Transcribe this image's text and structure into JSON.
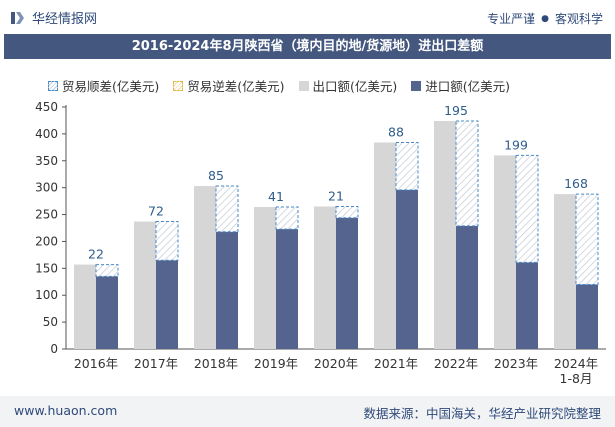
{
  "header": {
    "brand": "华经情报网",
    "slogan_left": "专业严谨",
    "slogan_right": "客观科学"
  },
  "title": "2016-2024年8月陕西省（境内目的地/货源地）进出口差额",
  "legend": {
    "surplus": "贸易顺差(亿美元)",
    "deficit": "贸易逆差(亿美元)",
    "export": "出口额(亿美元)",
    "import": "进口额(亿美元)"
  },
  "colors": {
    "export": "#d6d6d6",
    "import": "#54648f",
    "surplus_border": "#4a8aca",
    "deficit_border": "#e2b84b",
    "title_bg": "#44577f",
    "label": "#2e5d8a"
  },
  "chart_data": {
    "type": "bar",
    "title": "2016-2024年8月陕西省（境内目的地/货源地）进出口差额",
    "categories": [
      "2016年",
      "2017年",
      "2018年",
      "2019年",
      "2020年",
      "2021年",
      "2022年",
      "2023年",
      "2024年\n1-8月"
    ],
    "series": [
      {
        "name": "出口额(亿美元)",
        "values": [
          157,
          237,
          303,
          264,
          265,
          384,
          424,
          360,
          288
        ]
      },
      {
        "name": "进口额(亿美元)",
        "values": [
          135,
          165,
          218,
          223,
          244,
          296,
          229,
          161,
          120
        ]
      },
      {
        "name": "贸易顺差(亿美元)",
        "values": [
          22,
          72,
          85,
          41,
          21,
          88,
          195,
          199,
          168
        ]
      },
      {
        "name": "贸易逆差(亿美元)",
        "values": [
          0,
          0,
          0,
          0,
          0,
          0,
          0,
          0,
          0
        ]
      }
    ],
    "ylim": [
      0,
      450
    ],
    "yticks": [
      0,
      50,
      100,
      150,
      200,
      250,
      300,
      350,
      400,
      450
    ],
    "grid": false,
    "legend_position": "top"
  },
  "footer": {
    "url": "www.huaon.com",
    "source": "数据来源：中国海关，华经产业研究院整理"
  }
}
